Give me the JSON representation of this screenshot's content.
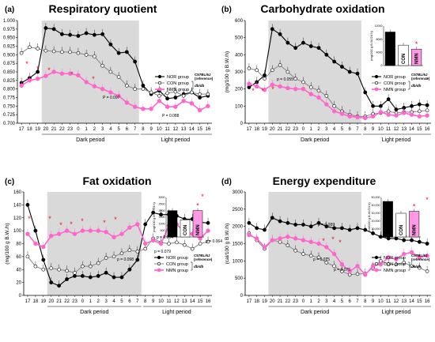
{
  "colors": {
    "nor": "#000000",
    "con": "#888888",
    "nmn": "#ff66cc",
    "dark": "#d9d9d9",
    "star": "#e8141e"
  },
  "common": {
    "x_hours": [
      17,
      18,
      19,
      20,
      21,
      22,
      23,
      0,
      1,
      2,
      3,
      4,
      5,
      6,
      7,
      8,
      9,
      10,
      11,
      12,
      13,
      14,
      15,
      16
    ],
    "dark_label": "Dark period",
    "light_label": "Light period",
    "legend": {
      "nor": "NOR group",
      "con": "CON group",
      "nmn": "NMN group",
      "strain": "C57BL/6J",
      "ref": "(reference)",
      "dbdb": "db/db"
    },
    "inset_groups": [
      "NOR",
      "CON",
      "NMN"
    ]
  },
  "chart_data": [
    {
      "panel": "(a)",
      "title": "Respiratory quotient",
      "type": "line",
      "ylabel": "",
      "ylim": [
        0.7,
        1.0
      ],
      "yticks": [
        "0.700",
        "0.725",
        "0.750",
        "0.775",
        "0.800",
        "0.825",
        "0.850",
        "0.875",
        "0.900",
        "0.925",
        "0.950",
        "0.975",
        "1.000"
      ],
      "series": [
        {
          "name": "NOR group",
          "values": [
            0.818,
            0.832,
            0.85,
            0.978,
            0.975,
            0.96,
            0.958,
            0.955,
            0.963,
            0.958,
            0.96,
            0.93,
            0.905,
            0.908,
            0.88,
            0.81,
            0.785,
            0.795,
            0.772,
            0.775,
            0.785,
            0.79,
            0.775,
            0.78
          ]
        },
        {
          "name": "CON group",
          "values": [
            0.905,
            0.922,
            0.918,
            0.912,
            0.91,
            0.908,
            0.908,
            0.905,
            0.9,
            0.895,
            0.868,
            0.85,
            0.835,
            0.81,
            0.8,
            0.8,
            0.79,
            0.78,
            0.788,
            0.792,
            0.78,
            0.79,
            0.785,
            0.785
          ]
        },
        {
          "name": "NMN group",
          "values": [
            0.81,
            0.825,
            0.83,
            0.838,
            0.85,
            0.845,
            0.845,
            0.84,
            0.82,
            0.808,
            0.8,
            0.79,
            0.78,
            0.76,
            0.748,
            0.742,
            0.742,
            0.765,
            0.748,
            0.748,
            0.765,
            0.758,
            0.738,
            0.75
          ]
        }
      ],
      "inset": null,
      "annotations": [
        "P = 0.097",
        "P = 0.088"
      ]
    },
    {
      "panel": "(b)",
      "title": "Carbohydrate oxidation",
      "type": "line",
      "ylabel": "(mg/100 g B.W./h)",
      "ylim": [
        0,
        600
      ],
      "yticks": [
        "0",
        "100",
        "200",
        "300",
        "400",
        "500",
        "600"
      ],
      "series": [
        {
          "name": "NOR group",
          "values": [
            210,
            240,
            280,
            550,
            520,
            470,
            440,
            470,
            450,
            440,
            400,
            360,
            330,
            300,
            290,
            180,
            100,
            100,
            140,
            80,
            90,
            100,
            110,
            105
          ]
        },
        {
          "name": "CON group",
          "values": [
            320,
            310,
            260,
            310,
            340,
            300,
            260,
            240,
            210,
            190,
            160,
            100,
            70,
            50,
            40,
            40,
            55,
            60,
            70,
            60,
            65,
            65,
            70,
            75
          ]
        },
        {
          "name": "NMN group",
          "values": [
            230,
            215,
            195,
            225,
            215,
            205,
            200,
            200,
            170,
            150,
            110,
            70,
            55,
            40,
            35,
            30,
            40,
            65,
            50,
            45,
            60,
            50,
            40,
            45
          ]
        }
      ],
      "inset": {
        "ylabel": "(mg/100 g B.W./24 h)",
        "yticks": [
          "0",
          "4000",
          "8000",
          "12000"
        ],
        "ymax": 12000,
        "values": [
          10200,
          6200,
          5000
        ]
      },
      "annotations": [
        "p = 0.055"
      ]
    },
    {
      "panel": "(c)",
      "title": "Fat oxidation",
      "type": "line",
      "ylabel": "(mg/100 g B.W./h)",
      "ylim": [
        0,
        160
      ],
      "yticks": [
        "0",
        "20",
        "40",
        "60",
        "80",
        "100",
        "120",
        "140",
        "160"
      ],
      "series": [
        {
          "name": "NOR group",
          "values": [
            140,
            100,
            55,
            20,
            15,
            25,
            30,
            30,
            28,
            30,
            35,
            28,
            28,
            40,
            55,
            110,
            128,
            125,
            125,
            123,
            118,
            118,
            113,
            112
          ]
        },
        {
          "name": "CON group",
          "values": [
            60,
            45,
            40,
            42,
            40,
            38,
            35,
            45,
            45,
            50,
            58,
            60,
            65,
            70,
            68,
            72,
            88,
            82,
            80,
            82,
            78,
            72,
            80,
            83
          ]
        },
        {
          "name": "NMN group",
          "values": [
            95,
            80,
            75,
            92,
            95,
            100,
            95,
            100,
            100,
            100,
            98,
            90,
            95,
            105,
            110,
            80,
            85,
            80,
            108,
            110,
            98,
            95,
            88,
            100
          ]
        }
      ],
      "inset": {
        "ylabel": "(mg/100 g B.W./24 h)",
        "yticks": [
          "0",
          "500",
          "1000",
          "1500",
          "2000",
          "2500",
          "3000"
        ],
        "ymax": 3000,
        "values": [
          2000,
          1300,
          2000
        ]
      },
      "annotations": [
        "p = 0.064",
        "p = 0.098",
        "p = 0.079",
        "p = 0.064"
      ]
    },
    {
      "panel": "(d)",
      "title": "Energy expenditure",
      "type": "line",
      "ylabel": "(cal/100 g B.W./h)",
      "ylim": [
        0,
        3000
      ],
      "yticks": [
        "0",
        "500",
        "1000",
        "1500",
        "2000",
        "2500",
        "3000"
      ],
      "series": [
        {
          "name": "NOR group",
          "values": [
            2100,
            1950,
            1900,
            2250,
            2150,
            2100,
            2050,
            2050,
            2000,
            2100,
            2000,
            1950,
            1950,
            1900,
            1950,
            1900,
            1800,
            1700,
            1650,
            1650,
            1600,
            1600,
            1550,
            1500
          ]
        },
        {
          "name": "CON group",
          "values": [
            1800,
            1600,
            1350,
            1600,
            1550,
            1450,
            1300,
            1200,
            1150,
            1100,
            950,
            850,
            700,
            600,
            620,
            630,
            800,
            1000,
            900,
            900,
            950,
            850,
            800,
            700
          ]
        },
        {
          "name": "NMN group",
          "values": [
            1750,
            1650,
            1400,
            1600,
            1650,
            1700,
            1650,
            1600,
            1550,
            1500,
            1400,
            1200,
            900,
            700,
            850,
            600,
            850,
            900,
            1100,
            1050,
            1200,
            1250,
            1100,
            1150
          ]
        }
      ],
      "inset": {
        "ylabel": "(cal/100 g B.W./24 h)",
        "yticks": [
          "0",
          "10,000",
          "20,000",
          "30,000",
          "40,000",
          "50,000"
        ],
        "ymax": 50000,
        "values": [
          45000,
          30000,
          32500
        ]
      },
      "annotations": [
        "p = 0.089",
        "p = 0.075",
        "p = 0.075"
      ]
    }
  ]
}
